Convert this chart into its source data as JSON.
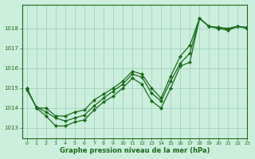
{
  "line1_x": [
    0,
    1,
    2,
    3,
    4,
    5,
    6,
    7,
    8,
    9,
    10,
    11,
    12,
    13,
    14,
    15,
    16,
    17,
    18,
    19,
    20,
    21,
    22,
    23
  ],
  "line1_y": [
    1015.0,
    1014.0,
    1013.6,
    1013.1,
    1013.1,
    1013.3,
    1013.4,
    1013.9,
    1014.3,
    1014.6,
    1015.0,
    1015.5,
    1015.2,
    1014.35,
    1014.0,
    1015.0,
    1016.1,
    1016.3,
    1018.5,
    1018.1,
    1018.0,
    1017.9,
    1018.1,
    1018.0
  ],
  "line2_x": [
    0,
    1,
    2,
    3,
    4,
    5,
    6,
    7,
    8,
    9,
    10,
    11,
    12,
    13,
    14,
    15,
    16,
    17,
    18,
    19,
    20,
    21,
    22,
    23
  ],
  "line2_y": [
    1014.9,
    1014.05,
    1013.8,
    1013.5,
    1013.35,
    1013.5,
    1013.65,
    1014.1,
    1014.5,
    1014.85,
    1015.2,
    1015.7,
    1015.55,
    1014.75,
    1014.35,
    1015.35,
    1016.25,
    1016.75,
    1018.5,
    1018.1,
    1018.0,
    1017.95,
    1018.1,
    1018.0
  ],
  "line3_x": [
    0,
    1,
    2,
    3,
    4,
    5,
    6,
    7,
    8,
    9,
    10,
    11,
    12,
    13,
    14,
    15,
    16,
    17,
    18,
    19,
    20,
    21,
    22,
    23
  ],
  "line3_y": [
    1015.0,
    1014.0,
    1014.0,
    1013.6,
    1013.6,
    1013.8,
    1013.9,
    1014.4,
    1014.7,
    1015.0,
    1015.35,
    1015.85,
    1015.7,
    1015.0,
    1014.5,
    1015.6,
    1016.6,
    1017.15,
    1018.5,
    1018.1,
    1018.05,
    1018.0,
    1018.1,
    1018.05
  ],
  "xlabel": "Graphe pression niveau de la mer (hPa)",
  "xlim": [
    -0.5,
    23
  ],
  "ylim": [
    1012.5,
    1019.2
  ],
  "yticks": [
    1013,
    1014,
    1015,
    1016,
    1017,
    1018
  ],
  "xticks": [
    0,
    1,
    2,
    3,
    4,
    5,
    6,
    7,
    8,
    9,
    10,
    11,
    12,
    13,
    14,
    15,
    16,
    17,
    18,
    19,
    20,
    21,
    22,
    23
  ],
  "line_color": "#1a6b1a",
  "bg_color": "#cceedd",
  "grid_color": "#99ccbb",
  "marker": "D",
  "marker_size": 2,
  "line_width": 0.9
}
